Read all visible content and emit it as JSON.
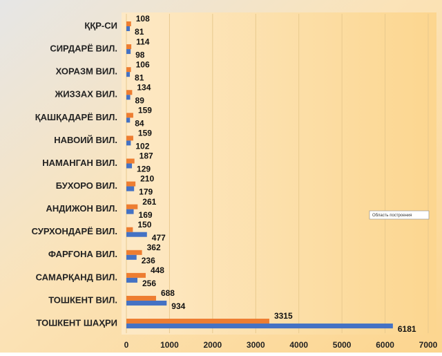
{
  "chart_data": {
    "type": "bar",
    "orientation": "horizontal",
    "categories": [
      "ҚҚР-СИ",
      "СИРДАРЁ ВИЛ.",
      "ХОРАЗМ ВИЛ.",
      "ЖИЗЗАХ ВИЛ.",
      "ҚАШҚАДАРЁ ВИЛ.",
      "НАВОИЙ ВИЛ.",
      "НАМАНГАН ВИЛ.",
      "БУХОРО ВИЛ.",
      "АНДИЖОН ВИЛ.",
      "СУРХОНДАРЁ ВИЛ.",
      "ФАРҒОНА ВИЛ.",
      "САМАРҚАНД ВИЛ.",
      "ТОШКЕНТ ВИЛ.",
      "ТОШКЕНТ ШАҲРИ"
    ],
    "series": [
      {
        "color": "#ed7d31",
        "values": [
          108,
          114,
          106,
          134,
          159,
          159,
          187,
          210,
          261,
          150,
          362,
          448,
          688,
          3315
        ]
      },
      {
        "color": "#4472c4",
        "values": [
          81,
          98,
          81,
          89,
          84,
          102,
          129,
          179,
          169,
          477,
          236,
          256,
          934,
          6181
        ]
      }
    ],
    "xlim": [
      0,
      7000
    ],
    "xticks": [
      0,
      1000,
      2000,
      3000,
      4000,
      5000,
      6000,
      7000
    ],
    "grid": true,
    "annotation": "Область построения"
  }
}
